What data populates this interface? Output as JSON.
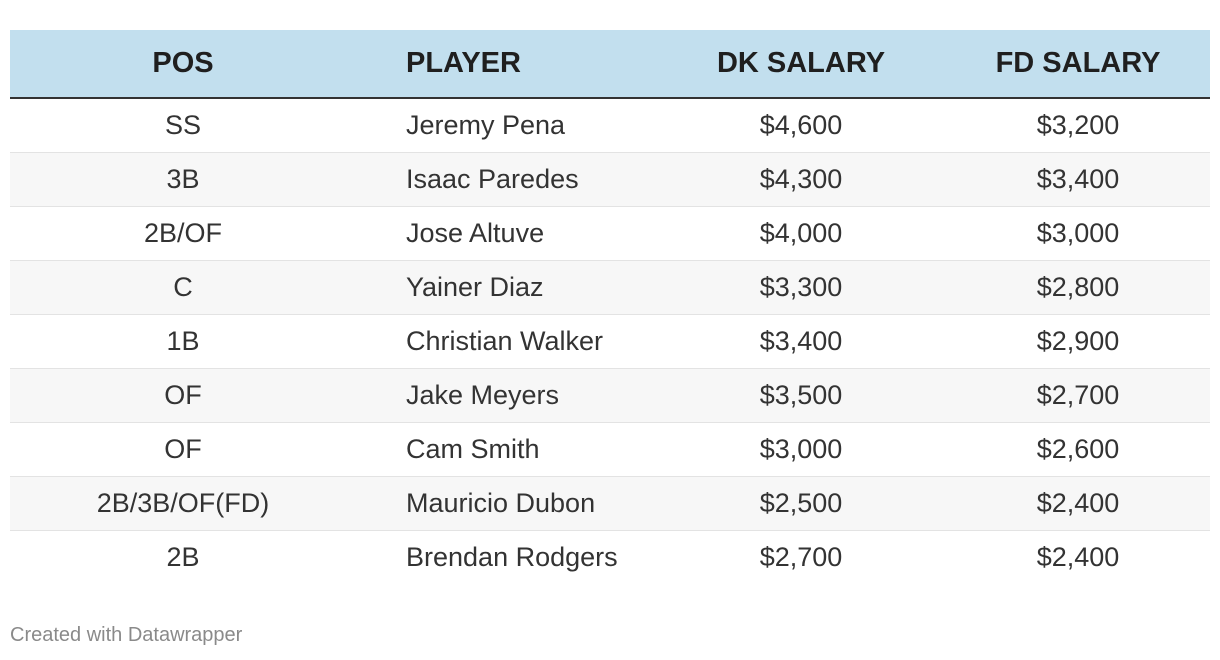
{
  "chart_data": {
    "type": "table",
    "columns": [
      "POS",
      "PLAYER",
      "DK SALARY",
      "FD SALARY"
    ],
    "rows": [
      [
        "SS",
        "Jeremy Pena",
        "$4,600",
        "$3,200"
      ],
      [
        "3B",
        "Isaac Paredes",
        "$4,300",
        "$3,400"
      ],
      [
        "2B/OF",
        "Jose Altuve",
        "$4,000",
        "$3,000"
      ],
      [
        "C",
        "Yainer Diaz",
        "$3,300",
        "$2,800"
      ],
      [
        "1B",
        "Christian Walker",
        "$3,400",
        "$2,900"
      ],
      [
        "OF",
        "Jake Meyers",
        "$3,500",
        "$2,700"
      ],
      [
        "OF",
        "Cam Smith",
        "$3,000",
        "$2,600"
      ],
      [
        "2B/3B/OF(FD)",
        "Mauricio Dubon",
        "$2,500",
        "$2,400"
      ],
      [
        "2B",
        "Brendan Rodgers",
        "$2,700",
        "$2,400"
      ]
    ],
    "header_color": "#c2dfee",
    "stripe_color": "#f7f7f7"
  },
  "footer": {
    "credit": "Created with Datawrapper"
  }
}
